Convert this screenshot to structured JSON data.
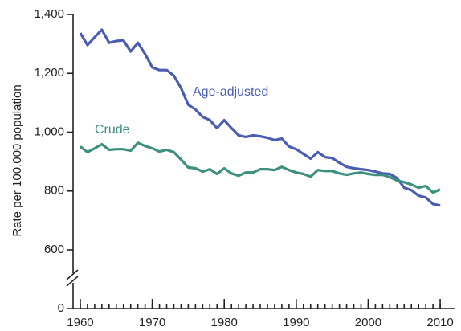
{
  "chart_data": {
    "type": "line",
    "y_axis_label": "Rate per 100,000 population",
    "x": [
      1960,
      1961,
      1962,
      1963,
      1964,
      1965,
      1966,
      1967,
      1968,
      1969,
      1970,
      1971,
      1972,
      1973,
      1974,
      1975,
      1976,
      1977,
      1978,
      1979,
      1980,
      1981,
      1982,
      1983,
      1984,
      1985,
      1986,
      1987,
      1988,
      1989,
      1990,
      1991,
      1992,
      1993,
      1994,
      1995,
      1996,
      1997,
      1998,
      1999,
      2000,
      2001,
      2002,
      2003,
      2004,
      2005,
      2006,
      2007,
      2008,
      2009,
      2010
    ],
    "series": [
      {
        "name": "Age-adjusted",
        "color": "#4a5db3",
        "values": [
          1337,
          1296,
          1323,
          1348,
          1304,
          1310,
          1312,
          1274,
          1304,
          1266,
          1220,
          1211,
          1211,
          1192,
          1150,
          1093,
          1077,
          1052,
          1041,
          1014,
          1041,
          1014,
          989,
          984,
          989,
          986,
          981,
          973,
          978,
          951,
          942,
          926,
          910,
          932,
          915,
          912,
          896,
          882,
          877,
          874,
          871,
          866,
          860,
          858,
          844,
          811,
          803,
          784,
          778,
          756,
          751
        ]
      },
      {
        "name": "Crude",
        "color": "#3d8f7e",
        "values": [
          951,
          932,
          945,
          959,
          940,
          942,
          942,
          937,
          964,
          953,
          945,
          934,
          940,
          932,
          907,
          880,
          877,
          866,
          874,
          858,
          877,
          860,
          852,
          863,
          863,
          874,
          874,
          871,
          882,
          871,
          863,
          858,
          849,
          871,
          868,
          868,
          860,
          855,
          860,
          863,
          858,
          855,
          855,
          847,
          836,
          830,
          822,
          811,
          817,
          795,
          805
        ]
      }
    ],
    "xlim": [
      1959,
      2012
    ],
    "xticks": [
      1960,
      1970,
      1980,
      1990,
      2000,
      2010
    ],
    "ylim": [
      0,
      1400
    ],
    "y_break": [
      0,
      600
    ],
    "yticks": [
      0,
      600,
      800,
      {
        "value": 1000,
        "label": "1,000"
      },
      {
        "value": 1200,
        "label": "1,200"
      },
      {
        "value": 1400,
        "label": "1,400"
      }
    ]
  }
}
